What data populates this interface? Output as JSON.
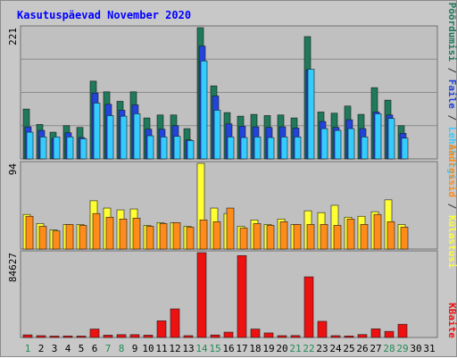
{
  "chart_data": {
    "title": "Kasutuspäevad November 2020",
    "categories": [
      "1",
      "2",
      "3",
      "4",
      "5",
      "6",
      "7",
      "8",
      "9",
      "10",
      "11",
      "12",
      "13",
      "14",
      "15",
      "16",
      "17",
      "18",
      "19",
      "20",
      "21",
      "22",
      "23",
      "24",
      "25",
      "26",
      "27",
      "28",
      "29",
      "30",
      "31"
    ],
    "weekend_days": [
      "1",
      "7",
      "8",
      "14",
      "15",
      "21",
      "22",
      "28",
      "29"
    ],
    "colors": {
      "background": "#c8c8c8",
      "plot_bg": "#c0c0c0",
      "title": "#0000ff",
      "pöördumisi": "#1e7a5a",
      "faile": "#2244dd",
      "lehekülgi": "#33ccff",
      "külastusi": "#ffff33",
      "aadresse": "#ff8c1a",
      "kbaite": "#ee1111",
      "weekday_label": "#000000",
      "weekend_label": "#228b57"
    },
    "panels": [
      {
        "type": "bar",
        "max_label": "221",
        "ylim": [
          0,
          221
        ],
        "series": [
          {
            "name": "Pöördumisi",
            "values": [
              84,
              58,
              45,
              56,
              53,
              131,
              113,
              97,
              113,
              69,
              74,
              74,
              51,
              221,
              123,
              78,
              72,
              75,
              73,
              74,
              69,
              206,
              79,
              77,
              89,
              75,
              120,
              99,
              56,
              0,
              0
            ]
          },
          {
            "name": "Faile",
            "values": [
              54,
              48,
              34,
              44,
              36,
              111,
              92,
              82,
              91,
              50,
              50,
              56,
              32,
              190,
              106,
              59,
              55,
              54,
              53,
              54,
              52,
              150,
              63,
              53,
              66,
              51,
              79,
              74,
              43,
              0,
              0
            ]
          },
          {
            "name": "Lehekülgi",
            "values": [
              45,
              37,
              37,
              37,
              34,
              94,
              73,
              72,
              76,
              39,
              37,
              38,
              31,
              165,
              82,
              37,
              36,
              37,
              36,
              37,
              37,
              151,
              51,
              48,
              51,
              37,
              76,
              68,
              35,
              0,
              0
            ]
          }
        ],
        "side_labels": [
          "Pöördumisi",
          "Faile",
          "Lehekülgi"
        ]
      },
      {
        "type": "bar",
        "max_label": "94",
        "ylim": [
          0,
          94
        ],
        "series": [
          {
            "name": "Külastusi",
            "values": [
              38,
              28,
              21,
              27,
              27,
              53,
              45,
              43,
              44,
              26,
              29,
              29,
              25,
              94,
              45,
              39,
              25,
              32,
              27,
              33,
              27,
              42,
              40,
              48,
              35,
              36,
              41,
              54,
              27,
              0,
              0
            ]
          },
          {
            "name": "Aadressid",
            "values": [
              36,
              25,
              20,
              27,
              26,
              39,
              35,
              33,
              34,
              25,
              28,
              29,
              24,
              32,
              30,
              45,
              23,
              28,
              26,
              30,
              27,
              27,
              27,
              26,
              33,
              27,
              38,
              30,
              24,
              0,
              0
            ]
          }
        ],
        "side_labels": [
          "Aadressid",
          "Külastusi"
        ]
      },
      {
        "type": "bar",
        "max_label": "84627",
        "ylim": [
          0,
          84627
        ],
        "series": [
          {
            "name": "KBaite",
            "values": [
              2600,
              1800,
              1400,
              1500,
              1400,
              8400,
              2300,
              2800,
              2800,
              2300,
              16600,
              28500,
              1800,
              84627,
              2500,
              5300,
              81700,
              8400,
              4500,
              1800,
              1900,
              60500,
              16100,
              1800,
              1500,
              2900,
              8600,
              6100,
              13200,
              0,
              0
            ]
          }
        ],
        "side_labels": [
          "KBaite"
        ]
      }
    ]
  }
}
